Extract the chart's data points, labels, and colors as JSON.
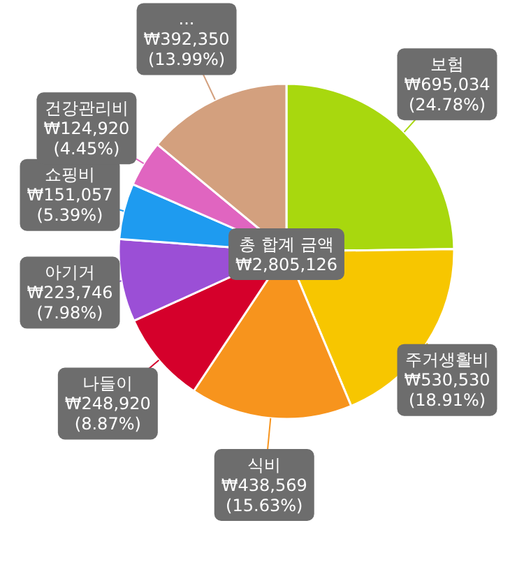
{
  "chart_data": {
    "type": "pie",
    "categories": [
      "보험",
      "주거생활비",
      "식비",
      "나들이",
      "아기거",
      "쇼핑비",
      "건강관리비",
      "..."
    ],
    "values": [
      695034,
      530530,
      438569,
      248920,
      223746,
      151057,
      124920,
      392350
    ],
    "colors": [
      "#a8d80e",
      "#f7c600",
      "#f7941d",
      "#d5002b",
      "#9b4fd6",
      "#1e9bf0",
      "#e065c0",
      "#d3a07e"
    ],
    "value_labels": [
      "₩695,034\n(24.78%)",
      "₩530,530\n(18.91%)",
      "₩438,569\n(15.63%)",
      "₩248,920\n(8.87%)",
      "₩223,746\n(7.98%)",
      "₩151,057\n(5.39%)",
      "₩124,920\n(4.45%)",
      "₩392,350\n(13.99%)"
    ],
    "annotations": [
      "총 합계 금액\n₩2,805,126"
    ]
  }
}
